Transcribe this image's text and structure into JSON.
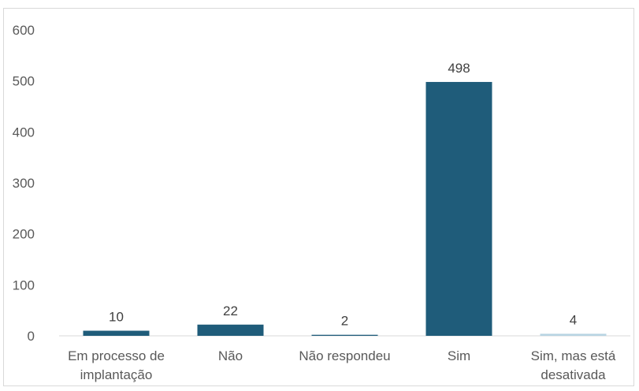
{
  "chart_data": {
    "type": "bar",
    "title": "",
    "xlabel": "",
    "ylabel": "",
    "categories": [
      [
        "Em processo de",
        "implantação"
      ],
      [
        "Não"
      ],
      [
        "Não respondeu"
      ],
      [
        "Sim"
      ],
      [
        "Sim, mas está",
        "desativada"
      ]
    ],
    "values": [
      10,
      22,
      2,
      498,
      4
    ],
    "bar_colors": [
      "#1f5c7a",
      "#1f5c7a",
      "#1f5c7a",
      "#1f5c7a",
      "#b8d4e3"
    ],
    "ylim": [
      0,
      600
    ],
    "yticks": [
      0,
      100,
      200,
      300,
      400,
      500,
      600
    ],
    "grid": false,
    "legend": "none"
  }
}
